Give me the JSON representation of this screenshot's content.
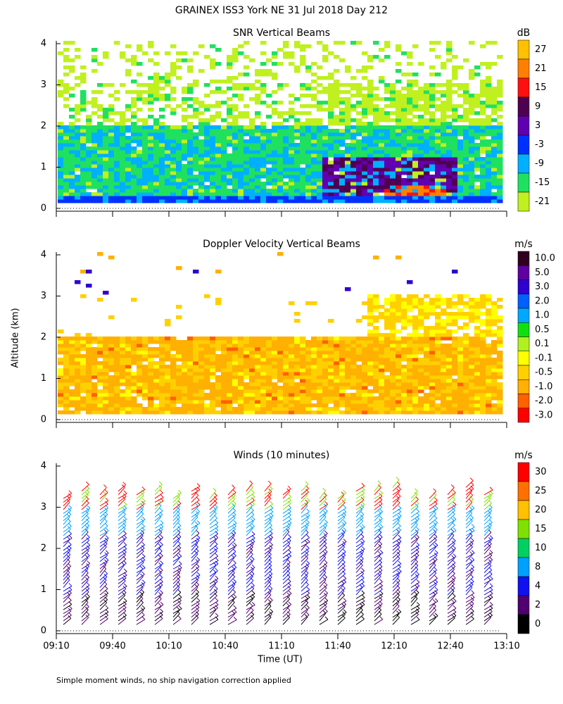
{
  "title": "GRAINEX ISS3 York NE  31 Jul 2018 Day 212",
  "y_label": "Altitude (km)",
  "x_label": "Time (UT)",
  "x_ticks": [
    "09:10",
    "09:40",
    "10:10",
    "10:40",
    "11:10",
    "11:40",
    "12:10",
    "12:40",
    "13:10"
  ],
  "y_ticks": [
    0,
    1,
    2,
    3,
    4
  ],
  "panels": [
    {
      "title": "SNR Vertical Beams",
      "unit": "dB",
      "field": "snr",
      "colorbar": [
        {
          "label": "27",
          "color": "#ffc000"
        },
        {
          "label": "21",
          "color": "#ff8000"
        },
        {
          "label": "15",
          "color": "#ff1010"
        },
        {
          "label": "9",
          "color": "#500050"
        },
        {
          "label": "3",
          "color": "#6000b0"
        },
        {
          "label": "-3",
          "color": "#0030ff"
        },
        {
          "label": "-9",
          "color": "#00b0ff"
        },
        {
          "label": "-15",
          "color": "#20e060"
        },
        {
          "label": "-21",
          "color": "#c0f020"
        }
      ]
    },
    {
      "title": "Doppler Velocity Vertical Beams",
      "unit": "m/s",
      "field": "doppler",
      "colorbar": [
        {
          "label": "10.0",
          "color": "#300020"
        },
        {
          "label": "5.0",
          "color": "#6000a0"
        },
        {
          "label": "3.0",
          "color": "#3000d0"
        },
        {
          "label": "2.0",
          "color": "#0060ff"
        },
        {
          "label": "1.0",
          "color": "#00a8ff"
        },
        {
          "label": "0.5",
          "color": "#10e010"
        },
        {
          "label": "0.1",
          "color": "#b0f020"
        },
        {
          "label": "-0.1",
          "color": "#ffff00"
        },
        {
          "label": "-0.5",
          "color": "#ffd000"
        },
        {
          "label": "-1.0",
          "color": "#ffb000"
        },
        {
          "label": "-2.0",
          "color": "#ff6000"
        },
        {
          "label": "-3.0",
          "color": "#ff0000"
        }
      ]
    },
    {
      "title": "Winds (10 minutes)",
      "unit": "m/s",
      "field": "winds",
      "colorbar": [
        {
          "label": "30",
          "color": "#ff0000"
        },
        {
          "label": "25",
          "color": "#ff7000"
        },
        {
          "label": "20",
          "color": "#ffc000"
        },
        {
          "label": "15",
          "color": "#80e000"
        },
        {
          "label": "10",
          "color": "#00d060"
        },
        {
          "label": "8",
          "color": "#00a0ff"
        },
        {
          "label": "4",
          "color": "#1010f0"
        },
        {
          "label": "2",
          "color": "#500070"
        },
        {
          "label": "0",
          "color": "#000000"
        }
      ]
    }
  ],
  "footnote": "Simple moment winds, no ship navigation correction applied"
}
